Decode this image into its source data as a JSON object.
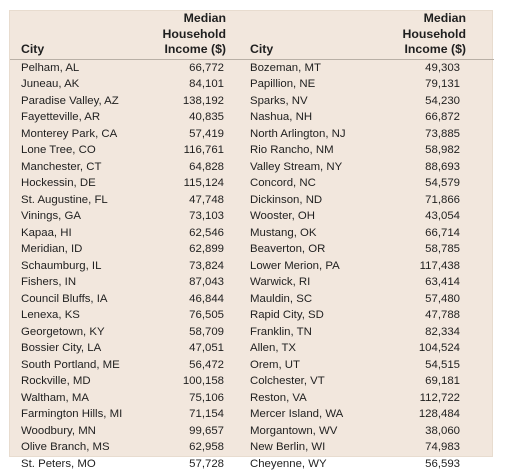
{
  "header": {
    "city_label": "City",
    "income_label_line1": "Median Household",
    "income_label_line2": "Income ($)"
  },
  "left_rows": [
    {
      "city": "Pelham, AL",
      "income": "66,772"
    },
    {
      "city": "Juneau, AK",
      "income": "84,101"
    },
    {
      "city": "Paradise Valley, AZ",
      "income": "138,192"
    },
    {
      "city": "Fayetteville, AR",
      "income": "40,835"
    },
    {
      "city": "Monterey Park, CA",
      "income": "57,419"
    },
    {
      "city": "Lone Tree, CO",
      "income": "116,761"
    },
    {
      "city": "Manchester, CT",
      "income": "64,828"
    },
    {
      "city": "Hockessin, DE",
      "income": "115,124"
    },
    {
      "city": "St. Augustine, FL",
      "income": "47,748"
    },
    {
      "city": "Vinings, GA",
      "income": "73,103"
    },
    {
      "city": "Kapaa, HI",
      "income": "62,546"
    },
    {
      "city": "Meridian, ID",
      "income": "62,899"
    },
    {
      "city": "Schaumburg, IL",
      "income": "73,824"
    },
    {
      "city": "Fishers, IN",
      "income": "87,043"
    },
    {
      "city": "Council Bluffs, IA",
      "income": "46,844"
    },
    {
      "city": "Lenexa, KS",
      "income": "76,505"
    },
    {
      "city": "Georgetown, KY",
      "income": "58,709"
    },
    {
      "city": "Bossier City, LA",
      "income": "47,051"
    },
    {
      "city": "South Portland, ME",
      "income": "56,472"
    },
    {
      "city": "Rockville, MD",
      "income": "100,158"
    },
    {
      "city": "Waltham, MA",
      "income": "75,106"
    },
    {
      "city": "Farmington Hills, MI",
      "income": "71,154"
    },
    {
      "city": "Woodbury, MN",
      "income": "99,657"
    },
    {
      "city": "Olive Branch, MS",
      "income": "62,958"
    },
    {
      "city": "St. Peters, MO",
      "income": "57,728"
    }
  ],
  "right_rows": [
    {
      "city": "Bozeman, MT",
      "income": "49,303"
    },
    {
      "city": "Papillion, NE",
      "income": "79,131"
    },
    {
      "city": "Sparks, NV",
      "income": "54,230"
    },
    {
      "city": "Nashua, NH",
      "income": "66,872"
    },
    {
      "city": "North Arlington, NJ",
      "income": "73,885"
    },
    {
      "city": "Rio Rancho, NM",
      "income": "58,982"
    },
    {
      "city": "Valley Stream, NY",
      "income": "88,693"
    },
    {
      "city": "Concord, NC",
      "income": "54,579"
    },
    {
      "city": "Dickinson, ND",
      "income": "71,866"
    },
    {
      "city": "Wooster, OH",
      "income": "43,054"
    },
    {
      "city": "Mustang, OK",
      "income": "66,714"
    },
    {
      "city": "Beaverton, OR",
      "income": "58,785"
    },
    {
      "city": "Lower Merion, PA",
      "income": "117,438"
    },
    {
      "city": "Warwick, RI",
      "income": "63,414"
    },
    {
      "city": "Mauldin, SC",
      "income": "57,480"
    },
    {
      "city": "Rapid City, SD",
      "income": "47,788"
    },
    {
      "city": "Franklin, TN",
      "income": "82,334"
    },
    {
      "city": "Allen, TX",
      "income": "104,524"
    },
    {
      "city": "Orem, UT",
      "income": "54,515"
    },
    {
      "city": "Colchester, VT",
      "income": "69,181"
    },
    {
      "city": "Reston, VA",
      "income": "112,722"
    },
    {
      "city": "Mercer Island, WA",
      "income": "128,484"
    },
    {
      "city": "Morgantown, WV",
      "income": "38,060"
    },
    {
      "city": "New Berlin, WI",
      "income": "74,983"
    },
    {
      "city": "Cheyenne, WY",
      "income": "56,593"
    }
  ]
}
